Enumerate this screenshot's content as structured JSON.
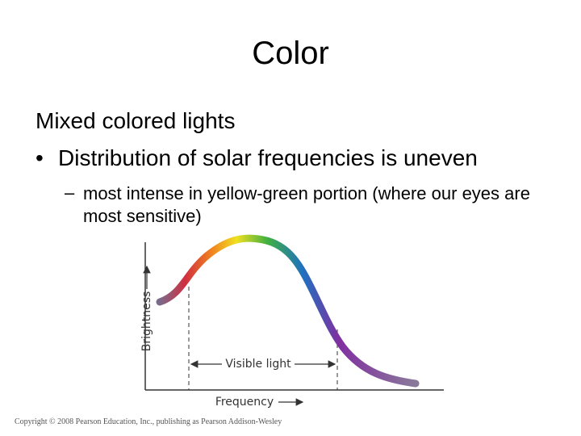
{
  "title": "Color",
  "heading": "Mixed colored lights",
  "bullet": "Distribution of solar frequencies is uneven",
  "sub_bullet": "most intense in yellow-green portion (where our eyes are most sensitive)",
  "figure": {
    "y_label": "Brightness",
    "range_label": "Visible light",
    "x_label": "Frequency"
  },
  "footer": "Copyright © 2008 Pearson Education, Inc., publishing as Pearson Addison-Wesley"
}
